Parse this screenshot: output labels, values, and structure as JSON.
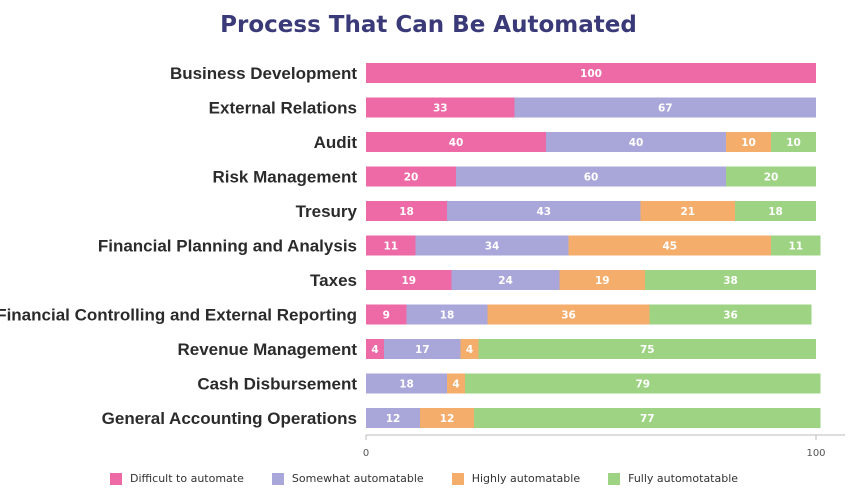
{
  "chart_data": {
    "type": "bar",
    "orientation": "horizontal",
    "stacked": true,
    "title": "Process That Can Be Automated",
    "categories": [
      "Business Development",
      "External Relations",
      "Audit",
      "Risk Management",
      "Tresury",
      "Financial Planning and Analysis",
      "Taxes",
      "Financial Controlling and External Reporting",
      "Revenue Management",
      "Cash Disbursement",
      "General Accounting Operations"
    ],
    "series": [
      {
        "name": "Difficult to automate",
        "color": "#ee6aa7",
        "values": [
          100,
          33,
          40,
          20,
          18,
          11,
          19,
          9,
          4,
          null,
          null
        ]
      },
      {
        "name": "Somewhat automatable",
        "color": "#a9a6d9",
        "values": [
          null,
          67,
          40,
          60,
          43,
          34,
          24,
          18,
          17,
          18,
          12
        ]
      },
      {
        "name": "Highly automatable",
        "color": "#f5ad6c",
        "values": [
          null,
          null,
          10,
          null,
          21,
          45,
          19,
          36,
          4,
          4,
          12
        ]
      },
      {
        "name": "Fully automotatable",
        "color": "#9dd383",
        "values": [
          null,
          null,
          10,
          20,
          18,
          11,
          38,
          36,
          75,
          79,
          77
        ]
      }
    ],
    "xlim": [
      0,
      100
    ],
    "xticks": [
      "0",
      "100"
    ],
    "grid": false,
    "legend_position": "bottom"
  }
}
